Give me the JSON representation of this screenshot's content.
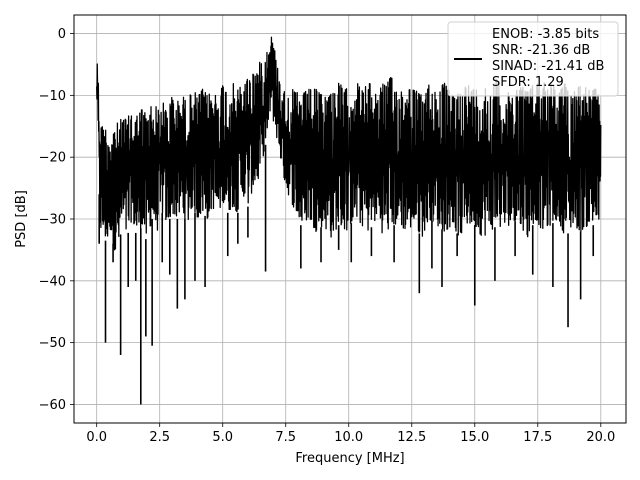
{
  "chart_data": {
    "type": "line",
    "title": "",
    "xlabel": "Frequency [MHz]",
    "ylabel": "PSD [dB]",
    "xlim": [
      -0.9,
      21.0
    ],
    "ylim": [
      -63,
      3
    ],
    "x_ticks": [
      {
        "value": 0,
        "label": "0.0"
      },
      {
        "value": 2.5,
        "label": "2.5"
      },
      {
        "value": 5,
        "label": "5.0"
      },
      {
        "value": 7.5,
        "label": "7.5"
      },
      {
        "value": 10,
        "label": "10.0"
      },
      {
        "value": 12.5,
        "label": "12.5"
      },
      {
        "value": 15,
        "label": "15.0"
      },
      {
        "value": 17.5,
        "label": "17.5"
      },
      {
        "value": 20,
        "label": "20.0"
      }
    ],
    "y_ticks": [
      {
        "value": 0,
        "label": "0"
      },
      {
        "value": -10,
        "label": "−10"
      },
      {
        "value": -20,
        "label": "−20"
      },
      {
        "value": -30,
        "label": "−30"
      },
      {
        "value": -40,
        "label": "−40"
      },
      {
        "value": -50,
        "label": "−50"
      },
      {
        "value": -60,
        "label": "−60"
      }
    ],
    "grid": true,
    "legend": {
      "placement": "top-right",
      "entries": [
        "ENOB: -3.85 bits",
        "SNR: -21.36 dB",
        "SINAD: -21.41 dB",
        "SFDR: 1.29"
      ]
    },
    "series": [
      {
        "color": "#000000",
        "x": [
          0.0,
          0.02,
          0.05,
          0.08,
          0.12,
          0.2,
          0.3,
          0.4,
          0.5,
          0.6,
          0.75,
          0.9,
          1.0,
          1.2,
          1.4,
          1.6,
          1.8,
          2.0,
          2.2,
          2.4,
          2.6,
          2.8,
          3.0,
          3.2,
          3.4,
          3.6,
          3.8,
          4.0,
          4.2,
          4.4,
          4.6,
          4.8,
          5.0,
          5.2,
          5.4,
          5.6,
          5.8,
          6.0,
          6.2,
          6.4,
          6.6,
          6.8,
          6.9,
          7.0,
          7.2,
          7.5,
          7.8,
          8.1,
          8.4,
          8.7,
          9.0,
          9.3,
          9.6,
          9.9,
          10.2,
          10.5,
          10.8,
          11.1,
          11.4,
          11.7,
          12.0,
          12.3,
          12.6,
          12.9,
          13.2,
          13.5,
          13.8,
          14.1,
          14.4,
          14.7,
          15.0,
          15.3,
          15.6,
          15.9,
          16.2,
          16.5,
          16.8,
          17.1,
          17.4,
          17.7,
          18.0,
          18.3,
          18.6,
          18.9,
          19.2,
          19.5,
          19.8,
          20.0
        ],
        "upper": [
          -8,
          -2,
          -6,
          -9,
          -13,
          -15,
          -14,
          -16,
          -15,
          -16,
          -14,
          -15,
          -13,
          -14,
          -12,
          -13,
          -12,
          -13,
          -11,
          -12,
          -11,
          -12,
          -10,
          -11,
          -10,
          -11,
          -9,
          -10,
          -9,
          -10,
          -9,
          -10,
          -8,
          -9,
          -8,
          -9,
          -8,
          -7,
          -6,
          -5,
          -4,
          -2,
          0,
          -1,
          -6,
          -10,
          -9,
          -10,
          -9,
          -9,
          -10,
          -9,
          -8,
          -9,
          -7,
          -9,
          -8,
          -9,
          -8,
          -7,
          -9,
          -8,
          -9,
          -10,
          -8,
          -9,
          -8,
          -10,
          -9,
          -8,
          -9,
          -8,
          -9,
          -7,
          -10,
          -9,
          -8,
          -9,
          -8,
          -7,
          -8,
          -9,
          -8,
          -9,
          -8,
          -9,
          -9,
          -9
        ],
        "lower": [
          -10,
          -12,
          -16,
          -22,
          -30,
          -34,
          -32,
          -35,
          -31,
          -33,
          -36,
          -34,
          -31,
          -33,
          -30,
          -33,
          -31,
          -34,
          -30,
          -32,
          -29,
          -31,
          -29,
          -30,
          -29,
          -31,
          -28,
          -30,
          -29,
          -30,
          -28,
          -30,
          -27,
          -29,
          -28,
          -29,
          -26,
          -28,
          -25,
          -24,
          -20,
          -16,
          -12,
          -14,
          -18,
          -25,
          -28,
          -31,
          -30,
          -32,
          -31,
          -33,
          -31,
          -32,
          -30,
          -31,
          -32,
          -30,
          -33,
          -31,
          -31,
          -32,
          -31,
          -33,
          -30,
          -31,
          -32,
          -31,
          -33,
          -31,
          -31,
          -33,
          -32,
          -31,
          -32,
          -30,
          -31,
          -33,
          -30,
          -32,
          -31,
          -30,
          -33,
          -31,
          -32,
          -31,
          -31,
          -31
        ],
        "spikes": [
          {
            "x": 0.1,
            "y": -34
          },
          {
            "x": 0.35,
            "y": -50
          },
          {
            "x": 0.65,
            "y": -37
          },
          {
            "x": 0.95,
            "y": -52
          },
          {
            "x": 1.25,
            "y": -41
          },
          {
            "x": 1.55,
            "y": -40
          },
          {
            "x": 1.75,
            "y": -60
          },
          {
            "x": 1.95,
            "y": -49
          },
          {
            "x": 2.2,
            "y": -50.5
          },
          {
            "x": 2.6,
            "y": -37
          },
          {
            "x": 2.9,
            "y": -39
          },
          {
            "x": 3.2,
            "y": -44.5
          },
          {
            "x": 3.5,
            "y": -43
          },
          {
            "x": 3.9,
            "y": -40
          },
          {
            "x": 4.3,
            "y": -41
          },
          {
            "x": 5.2,
            "y": -36
          },
          {
            "x": 5.6,
            "y": -34
          },
          {
            "x": 6.0,
            "y": -33
          },
          {
            "x": 6.7,
            "y": -38.5
          },
          {
            "x": 8.1,
            "y": -38
          },
          {
            "x": 8.9,
            "y": -37
          },
          {
            "x": 9.6,
            "y": -35
          },
          {
            "x": 10.1,
            "y": -37
          },
          {
            "x": 10.9,
            "y": -36
          },
          {
            "x": 11.8,
            "y": -37
          },
          {
            "x": 12.8,
            "y": -42
          },
          {
            "x": 13.3,
            "y": -38
          },
          {
            "x": 13.7,
            "y": -41
          },
          {
            "x": 14.3,
            "y": -36
          },
          {
            "x": 15.0,
            "y": -44
          },
          {
            "x": 15.8,
            "y": -40
          },
          {
            "x": 16.6,
            "y": -36
          },
          {
            "x": 17.3,
            "y": -39
          },
          {
            "x": 18.1,
            "y": -41
          },
          {
            "x": 18.7,
            "y": -47.5
          },
          {
            "x": 19.2,
            "y": -43
          },
          {
            "x": 19.7,
            "y": -36
          }
        ]
      }
    ]
  }
}
